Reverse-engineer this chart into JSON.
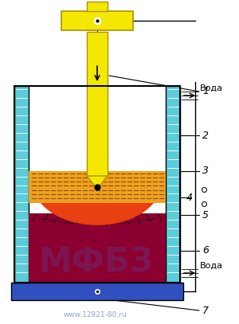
{
  "bg_color": "#ffffff",
  "fig_width": 3.0,
  "fig_height": 4.07,
  "dpi": 100,
  "wall_color": "#5bccd8",
  "bottom_plate_color": "#3050c0",
  "electrode_color": "#f5e800",
  "electrode_edge_color": "#b09000",
  "slag_color": "#f0a020",
  "slag_line_color": "#c07010",
  "liquid_metal_color": "#e84010",
  "solid_metal_color": "#8b0030",
  "arc_line_color": "#1a0010",
  "water_label": "Вода",
  "watermark_text": "МФБЗ",
  "url_text": "www.12821-80.ru",
  "labels": [
    "1",
    "2",
    "3",
    "4",
    "5",
    "6",
    "7"
  ]
}
